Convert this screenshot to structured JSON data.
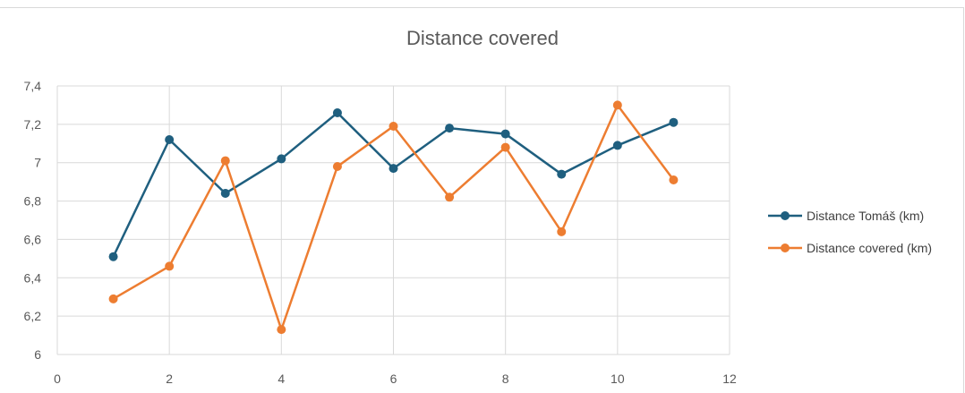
{
  "chart_data": {
    "type": "scatter",
    "title": "Distance covered",
    "xlabel": "",
    "ylabel": "",
    "xlim": [
      0,
      12
    ],
    "ylim": [
      6,
      7.4
    ],
    "x_ticks": [
      "0",
      "2",
      "4",
      "6",
      "8",
      "10",
      "12"
    ],
    "y_ticks": [
      "6",
      "6,2",
      "6,4",
      "6,6",
      "6,8",
      "7",
      "7,2",
      "7,4"
    ],
    "grid": true,
    "legend_position": "right",
    "series": [
      {
        "name": "Distance Tomáš (km)",
        "color": "#1f5f7f",
        "x": [
          1,
          2,
          3,
          4,
          5,
          6,
          7,
          8,
          9,
          10,
          11
        ],
        "y": [
          6.51,
          7.12,
          6.84,
          7.02,
          7.26,
          6.97,
          7.18,
          7.15,
          6.94,
          7.09,
          7.21
        ]
      },
      {
        "name": "Distance covered (km)",
        "color": "#ed7d31",
        "x": [
          1,
          2,
          3,
          4,
          5,
          6,
          7,
          8,
          9,
          10,
          11
        ],
        "y": [
          6.29,
          6.46,
          7.01,
          6.13,
          6.98,
          7.19,
          6.82,
          7.08,
          6.64,
          7.3,
          6.91
        ]
      }
    ]
  }
}
